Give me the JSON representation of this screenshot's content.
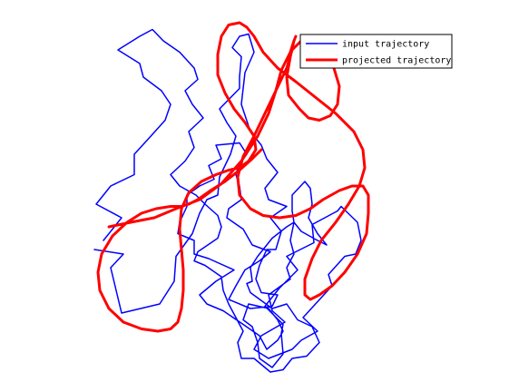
{
  "chart_data": {
    "type": "line",
    "title": "",
    "xlabel": "",
    "ylabel": "",
    "axes_visible": false,
    "grid": false,
    "legend_placement": "top-right",
    "series": [
      {
        "name": "input trajectory",
        "color": "#0000ff",
        "x": [
          -0.88,
          -0.72,
          -0.79,
          -0.76,
          -0.73,
          -0.52,
          -0.44,
          -0.43,
          -0.34,
          -0.3,
          -0.26,
          -0.2,
          -0.19,
          -0.13,
          -0.1,
          -0.15,
          -0.19,
          -0.08,
          -0.08,
          -0.07,
          -0.12,
          -0.08,
          -0.03,
          0.0,
          -0.05,
          -0.07,
          -0.02,
          0.04,
          0.07,
          0.13,
          0.06,
          0.08,
          0.18,
          0.09,
          0.15,
          0.12,
          0.07,
          0.03,
          0.01,
          0.04,
          0.13,
          0.1,
          -0.02,
          -0.14,
          -0.1,
          -0.05,
          0.03,
          0.09,
          -0.01,
          -0.06,
          -0.15,
          -0.14,
          -0.07,
          -0.08,
          -0.1,
          -0.08,
          -0.04,
          -0.08,
          -0.21,
          -0.18,
          -0.25,
          -0.22,
          -0.3,
          -0.37,
          -0.37,
          -0.41,
          -0.42,
          -0.33,
          -0.33,
          -0.25,
          -0.11,
          -0.21,
          -0.3,
          -0.26,
          -0.17,
          -0.06,
          0.03,
          0.07,
          0.13,
          0.16,
          0.13,
          0.08,
          -0.03,
          -0.06,
          -0.01,
          0.02,
          0.03,
          0.1,
          0.16,
          0.15,
          0.16,
          0.06,
          0.14,
          0.24,
          0.18,
          0.33,
          0.32,
          0.46,
          0.48,
          0.57,
          0.59,
          0.56,
          0.5,
          0.41,
          0.43,
          0.35,
          0.27,
          0.35,
          0.26,
          0.21,
          0.08,
          0.0,
          0.04,
          0.17,
          0.1,
          0.08,
          0.2,
          0.18,
          0.22,
          0.2,
          0.22,
          0.21,
          0.21,
          0.28,
          0.31,
          0.32,
          0.3,
          0.35,
          0.4,
          0.35,
          0.26,
          0.22,
          0.18,
          0.1,
          0.02,
          -0.02,
          -0.01,
          -0.04,
          -0.02,
          0.1,
          0.18,
          0.24,
          0.32,
          0.36,
          0.29,
          0.21,
          0.16,
          0.09,
          0.0,
          -0.07,
          -0.09,
          -0.06,
          -0.1,
          -0.14,
          -0.17,
          -0.18,
          -0.27,
          -0.33,
          -0.31,
          -0.2,
          -0.18,
          -0.2,
          -0.27,
          -0.32,
          -0.41,
          -0.46,
          -0.38,
          -0.33,
          -0.36,
          -0.28,
          -0.34,
          -0.38,
          -0.31,
          -0.33,
          -0.41,
          -0.5,
          -0.56,
          -0.63,
          -0.75,
          -0.63,
          -0.61,
          -0.51,
          -0.46,
          -0.49,
          -0.58,
          -0.66,
          -0.66,
          -0.79,
          -0.87,
          -0.73,
          -0.83
        ],
        "y": [
          0.58,
          0.56,
          0.5,
          0.4,
          0.3,
          0.34,
          0.44,
          0.55,
          0.65,
          0.74,
          0.8,
          0.82,
          0.9,
          1.0,
          1.08,
          1.14,
          1.2,
          1.29,
          1.34,
          1.43,
          1.47,
          1.52,
          1.53,
          1.45,
          1.36,
          1.22,
          1.1,
          1.04,
          0.98,
          0.92,
          0.85,
          0.8,
          0.77,
          0.72,
          0.66,
          0.58,
          0.58,
          0.51,
          0.45,
          0.39,
          0.38,
          0.33,
          0.32,
          0.36,
          0.42,
          0.49,
          0.53,
          0.57,
          0.6,
          0.67,
          0.72,
          0.76,
          0.8,
          0.86,
          0.91,
          0.96,
          1.0,
          1.05,
          1.04,
          0.98,
          0.95,
          0.89,
          0.86,
          0.82,
          0.77,
          0.7,
          0.65,
          0.62,
          0.56,
          0.54,
          0.49,
          0.44,
          0.38,
          0.34,
          0.31,
          0.25,
          0.2,
          0.14,
          0.18,
          0.22,
          0.27,
          0.32,
          0.34,
          0.27,
          0.24,
          0.17,
          0.1,
          0.06,
          0.12,
          0.21,
          0.25,
          0.33,
          0.41,
          0.49,
          0.55,
          0.61,
          0.69,
          0.75,
          0.77,
          0.7,
          0.62,
          0.56,
          0.55,
          0.47,
          0.42,
          0.35,
          0.28,
          0.22,
          0.18,
          0.14,
          0.1,
          0.14,
          0.2,
          0.26,
          0.31,
          0.38,
          0.45,
          0.5,
          0.56,
          0.62,
          0.7,
          0.75,
          0.82,
          0.88,
          0.85,
          0.78,
          0.72,
          0.65,
          0.6,
          0.62,
          0.66,
          0.7,
          0.68,
          0.63,
          0.55,
          0.5,
          0.44,
          0.43,
          0.39,
          0.32,
          0.34,
          0.27,
          0.24,
          0.17,
          0.11,
          0.1,
          0.05,
          0.04,
          0.1,
          0.1,
          0.17,
          0.22,
          0.28,
          0.34,
          0.4,
          0.46,
          0.51,
          0.53,
          0.57,
          0.63,
          0.68,
          0.73,
          0.78,
          0.82,
          0.86,
          0.91,
          0.97,
          1.03,
          1.1,
          1.16,
          1.22,
          1.28,
          1.33,
          1.38,
          1.45,
          1.5,
          1.55,
          1.52,
          1.46,
          1.4,
          1.34,
          1.28,
          1.22,
          1.15,
          1.07,
          1.0,
          0.91,
          0.86,
          0.78,
          0.72,
          0.62
        ]
      },
      {
        "name": "projected trajectory",
        "color": "#ff0000",
        "x": [
          -0.8,
          -0.68,
          -0.55,
          -0.43,
          -0.3,
          -0.18,
          -0.07,
          0.02,
          0.08,
          0.12,
          0.15,
          0.2,
          0.22,
          0.23,
          0.22,
          0.2,
          0.18,
          0.19,
          0.25,
          0.3,
          0.36,
          0.42,
          0.46,
          0.47,
          0.44,
          0.38,
          0.32,
          0.26,
          0.21,
          0.18,
          0.12,
          0.06,
          0.0,
          -0.06,
          -0.09,
          -0.08,
          -0.02,
          0.05,
          0.14,
          0.23,
          0.31,
          0.38,
          0.47,
          0.54,
          0.6,
          0.63,
          0.63,
          0.62,
          0.57,
          0.5,
          0.43,
          0.36,
          0.31,
          0.28,
          0.28,
          0.32,
          0.37,
          0.45,
          0.52,
          0.58,
          0.61,
          0.6,
          0.55,
          0.45,
          0.34,
          0.23,
          0.13,
          0.05,
          0.0,
          -0.04,
          -0.08,
          -0.14,
          -0.18,
          -0.2,
          -0.2,
          -0.16,
          -0.11,
          -0.05,
          0.0,
          0.01,
          -0.03,
          -0.08,
          -0.14,
          -0.21,
          -0.29,
          -0.36,
          -0.4,
          -0.41,
          -0.4,
          -0.39,
          -0.39,
          -0.4,
          -0.42,
          -0.46,
          -0.53,
          -0.62,
          -0.72,
          -0.8,
          -0.85,
          -0.86,
          -0.84,
          -0.78,
          -0.7,
          -0.62,
          -0.54,
          -0.46,
          -0.4,
          -0.36,
          -0.31,
          -0.24,
          -0.16,
          -0.08,
          -0.01,
          0.04
        ],
        "y": [
          0.68,
          0.7,
          0.72,
          0.76,
          0.8,
          0.87,
          0.97,
          1.08,
          1.18,
          1.28,
          1.37,
          1.45,
          1.5,
          1.52,
          1.5,
          1.43,
          1.34,
          1.26,
          1.2,
          1.16,
          1.15,
          1.17,
          1.22,
          1.3,
          1.38,
          1.45,
          1.49,
          1.5,
          1.46,
          1.38,
          1.28,
          1.18,
          1.08,
          0.99,
          0.9,
          0.82,
          0.76,
          0.73,
          0.72,
          0.73,
          0.76,
          0.8,
          0.84,
          0.86,
          0.86,
          0.82,
          0.74,
          0.65,
          0.56,
          0.48,
          0.42,
          0.38,
          0.36,
          0.38,
          0.45,
          0.54,
          0.62,
          0.7,
          0.78,
          0.86,
          0.94,
          1.02,
          1.1,
          1.18,
          1.25,
          1.32,
          1.38,
          1.45,
          1.52,
          1.56,
          1.58,
          1.57,
          1.52,
          1.44,
          1.35,
          1.27,
          1.2,
          1.14,
          1.08,
          1.02,
          0.97,
          0.94,
          0.93,
          0.91,
          0.88,
          0.83,
          0.76,
          0.67,
          0.58,
          0.49,
          0.4,
          0.32,
          0.26,
          0.23,
          0.22,
          0.23,
          0.26,
          0.32,
          0.4,
          0.48,
          0.56,
          0.64,
          0.7,
          0.74,
          0.76,
          0.77,
          0.77,
          0.78,
          0.8,
          0.84,
          0.88,
          0.93,
          0.98,
          1.02
        ]
      }
    ],
    "legend": {
      "entries": [
        "input trajectory",
        "projected trajectory"
      ]
    }
  }
}
